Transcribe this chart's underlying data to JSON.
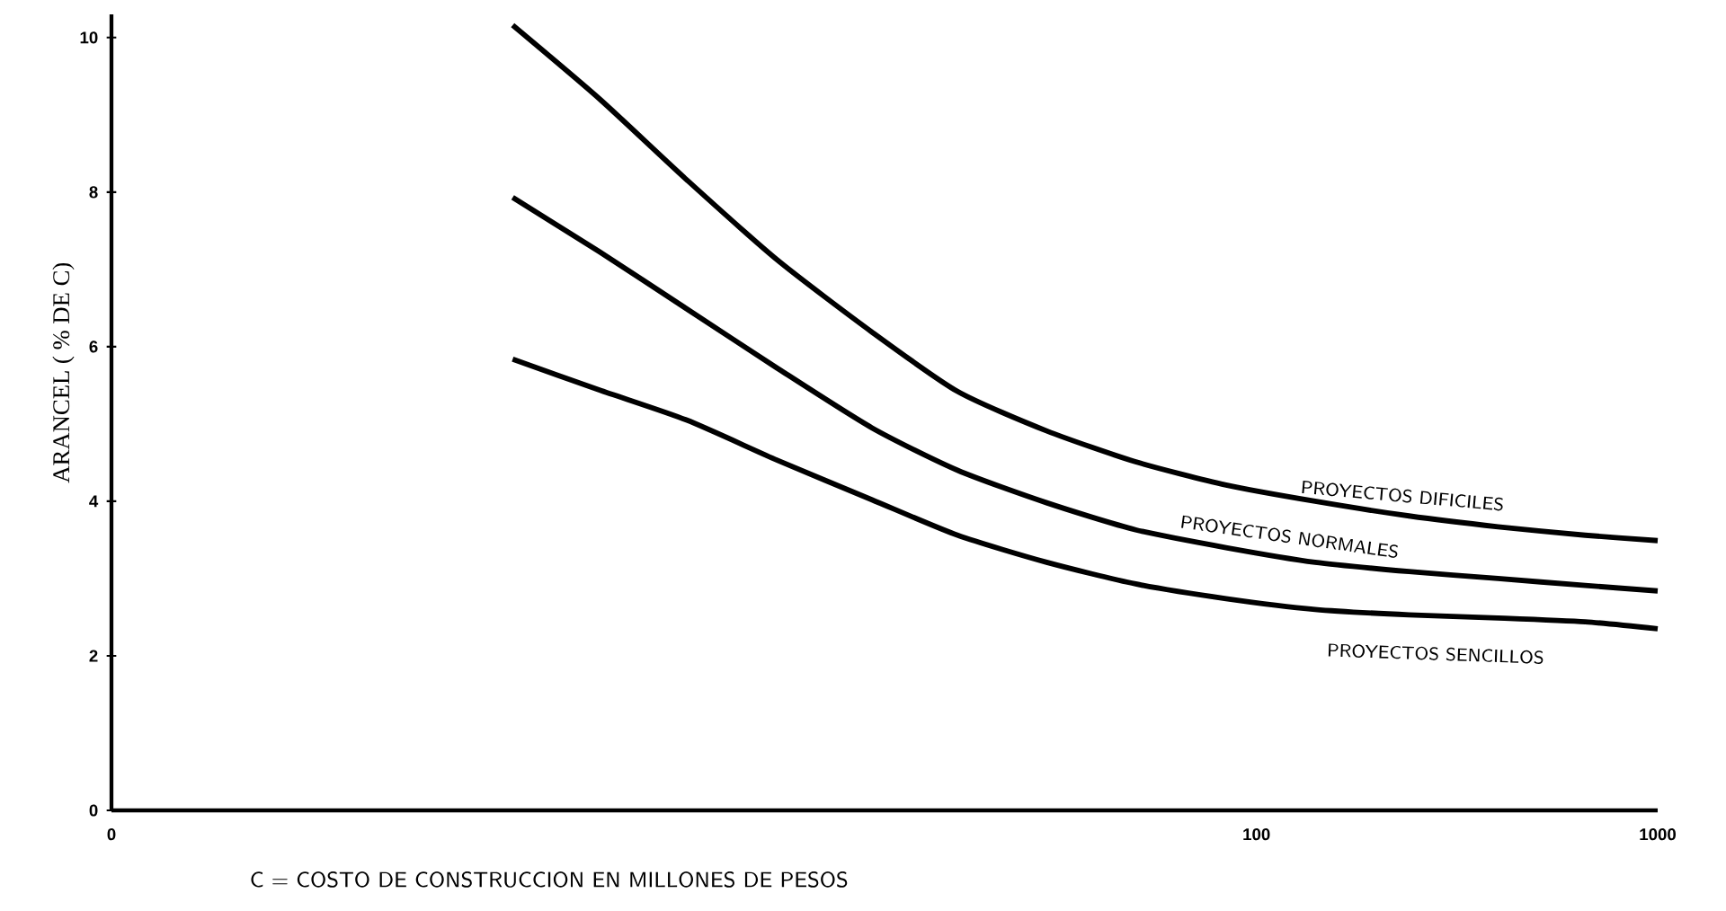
{
  "chart_data": {
    "type": "line",
    "xlabel": "C = COSTO DE CONSTRUCCION EN MILLONES DE PESOS",
    "ylabel": "ARANCEL ( % DE C)",
    "log": "x",
    "xlim": [
      0.14,
      1000
    ],
    "xticks": [
      {
        "value": 0.14,
        "label": "0"
      },
      100,
      1000
    ],
    "ylim": [
      0,
      10.3
    ],
    "yticks": [
      0,
      2,
      4,
      6,
      8,
      10
    ],
    "x": [
      1.4,
      2.3,
      3.8,
      6.4,
      11,
      18,
      30,
      50,
      84,
      140,
      240,
      400,
      660,
      1000
    ],
    "grid": false,
    "marker": "none",
    "line_style": "solid",
    "series": [
      {
        "name": "PROYECTOS DIFICILES",
        "color": "#000000",
        "values": [
          10.16,
          9.21,
          8.16,
          7.12,
          6.19,
          5.42,
          4.91,
          4.51,
          4.21,
          4.0,
          3.81,
          3.67,
          3.56,
          3.49
        ]
      },
      {
        "name": "PROYECTOS NORMALES",
        "color": "#000000",
        "values": [
          7.93,
          7.23,
          6.49,
          5.72,
          4.95,
          4.4,
          3.98,
          3.63,
          3.4,
          3.21,
          3.09,
          3.0,
          2.91,
          2.84
        ]
      },
      {
        "name": "PROYECTOS SENCILLOS",
        "color": "#000000",
        "values": [
          5.84,
          5.44,
          5.05,
          4.53,
          4.02,
          3.56,
          3.21,
          2.93,
          2.74,
          2.6,
          2.53,
          2.49,
          2.44,
          2.35
        ]
      }
    ]
  }
}
